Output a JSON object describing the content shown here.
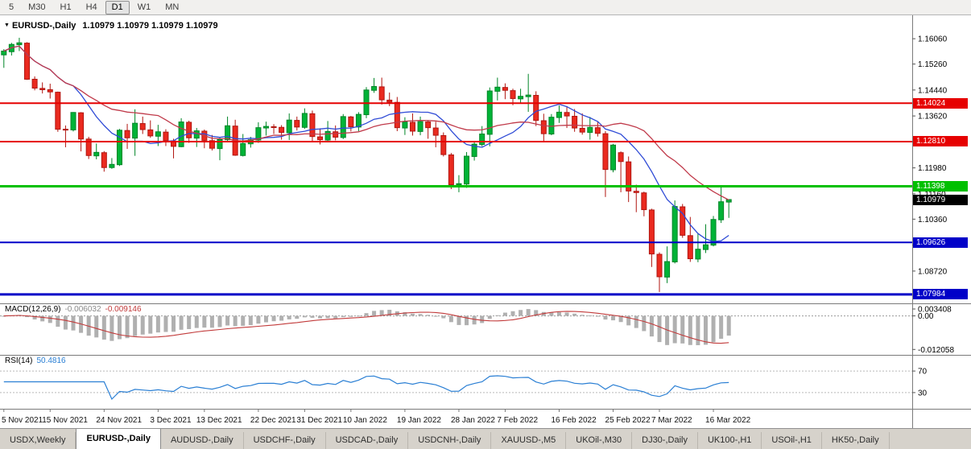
{
  "toolbar": {
    "timeframes": [
      {
        "label": "5",
        "active": false
      },
      {
        "label": "M30",
        "active": false
      },
      {
        "label": "H1",
        "active": false
      },
      {
        "label": "H4",
        "active": false
      },
      {
        "label": "D1",
        "active": true
      },
      {
        "label": "W1",
        "active": false
      },
      {
        "label": "MN",
        "active": false
      }
    ]
  },
  "chart_header": {
    "symbol": "EURUSD-,Daily",
    "ohlc": "1.10979 1.10979 1.10979 1.10979"
  },
  "macd_panel": {
    "name": "MACD(12,26,9)",
    "main_value": "-0.006032",
    "signal_value": "-0.009146",
    "range": [
      -0.014,
      0.0045
    ],
    "ticks": [
      {
        "v": 0.003408,
        "label": "0.003408"
      },
      {
        "v": 0,
        "label": "0.00"
      },
      {
        "v": -0.012058,
        "label": "-0.012058"
      }
    ]
  },
  "rsi_panel": {
    "name": "RSI(14)",
    "value": "50.4816",
    "range": [
      0,
      100
    ],
    "levels": [
      {
        "v": 70,
        "label": "70"
      },
      {
        "v": 30,
        "label": "30"
      }
    ]
  },
  "tabs": {
    "items": [
      "USDX,Weekly",
      "EURUSD-,Daily",
      "AUDUSD-,Daily",
      "USDCHF-,Daily",
      "USDCAD-,Daily",
      "USDCNH-,Daily",
      "XAUUSD-,M5",
      "UKOil-,M30",
      "DJ30-,Daily",
      "UK100-,H1",
      "USOil-,H1",
      "HK50-,Daily"
    ],
    "active_index": 1
  },
  "chart_data": {
    "type": "candlestick",
    "symbol": "EURUSD",
    "timeframe": "Daily",
    "ylim": [
      1.077,
      1.168
    ],
    "price_ticks": [
      {
        "v": 1.1606,
        "label": "1.16060"
      },
      {
        "v": 1.1526,
        "label": "1.15260"
      },
      {
        "v": 1.1444,
        "label": "1.14440"
      },
      {
        "v": 1.1362,
        "label": "1.13620"
      },
      {
        "v": 1.1281,
        "label": "1.12810"
      },
      {
        "v": 1.1198,
        "label": "1.11980"
      },
      {
        "v": 1.1116,
        "label": "1.11160"
      },
      {
        "v": 1.1036,
        "label": "1.10360"
      },
      {
        "v": 1.0954,
        "label": "1.09540"
      },
      {
        "v": 1.0872,
        "label": "1.08720"
      }
    ],
    "hlines": [
      {
        "v": 1.14024,
        "label": "1.14024",
        "color": "#e60000",
        "width": 2
      },
      {
        "v": 1.1281,
        "label": "1.12810",
        "color": "#e60000",
        "width": 2
      },
      {
        "v": 1.11398,
        "label": "1.11398",
        "color": "#00c000",
        "width": 3
      },
      {
        "v": 1.09626,
        "label": "1.09626",
        "color": "#0000c8",
        "width": 2
      },
      {
        "v": 1.07984,
        "label": "1.07984",
        "color": "#0000c8",
        "width": 3
      }
    ],
    "current_price": {
      "v": 1.10979,
      "label": "1.10979",
      "color": "#000000"
    },
    "x_labels": [
      {
        "i": 0,
        "label": "5 Nov 2021"
      },
      {
        "i": 6,
        "label": "15 Nov 2021"
      },
      {
        "i": 13,
        "label": "24 Nov 2021"
      },
      {
        "i": 20,
        "label": "3 Dec 2021"
      },
      {
        "i": 26,
        "label": "13 Dec 2021"
      },
      {
        "i": 33,
        "label": "22 Dec 2021"
      },
      {
        "i": 39,
        "label": "31 Dec 2021"
      },
      {
        "i": 45,
        "label": "10 Jan 2022"
      },
      {
        "i": 52,
        "label": "19 Jan 2022"
      },
      {
        "i": 59,
        "label": "28 Jan 2022"
      },
      {
        "i": 65,
        "label": "7 Feb 2022"
      },
      {
        "i": 72,
        "label": "16 Feb 2022"
      },
      {
        "i": 79,
        "label": "25 Feb 2022"
      },
      {
        "i": 85,
        "label": "7 Mar 2022"
      },
      {
        "i": 92,
        "label": "16 Mar 2022"
      }
    ],
    "overlays": {
      "ma_fast": {
        "period": 10,
        "color": "#2f4bd6"
      },
      "ma_slow": {
        "period": 21,
        "color": "#c03a4a"
      }
    },
    "colors": {
      "up": "#00b337",
      "up_stroke": "#008527",
      "down": "#ea2a1f",
      "down_stroke": "#b01510",
      "macd_hist": "#b0b0b0",
      "macd_signal": "#c23b3b",
      "rsi_line": "#2a7fd4"
    },
    "candles": [
      [
        1.1555,
        1.1573,
        1.1514,
        1.1567
      ],
      [
        1.1565,
        1.1593,
        1.1553,
        1.1588
      ],
      [
        1.1587,
        1.1609,
        1.1567,
        1.1593
      ],
      [
        1.1592,
        1.1595,
        1.1476,
        1.1478
      ],
      [
        1.1478,
        1.1487,
        1.1443,
        1.145
      ],
      [
        1.1449,
        1.1468,
        1.1433,
        1.1445
      ],
      [
        1.1445,
        1.1464,
        1.1417,
        1.1438
      ],
      [
        1.1437,
        1.1439,
        1.1312,
        1.132
      ],
      [
        1.132,
        1.1332,
        1.1263,
        1.1319
      ],
      [
        1.1318,
        1.1374,
        1.1313,
        1.1373
      ],
      [
        1.1372,
        1.1374,
        1.125,
        1.1289
      ],
      [
        1.1289,
        1.1296,
        1.1226,
        1.1237
      ],
      [
        1.1236,
        1.1275,
        1.1225,
        1.1247
      ],
      [
        1.1246,
        1.1251,
        1.1186,
        1.1199
      ],
      [
        1.1199,
        1.1229,
        1.1195,
        1.1209
      ],
      [
        1.1208,
        1.1321,
        1.1204,
        1.1317
      ],
      [
        1.1316,
        1.1337,
        1.1258,
        1.1293
      ],
      [
        1.1292,
        1.1383,
        1.1236,
        1.1339
      ],
      [
        1.1338,
        1.136,
        1.1305,
        1.1319
      ],
      [
        1.1318,
        1.1348,
        1.1293,
        1.1299
      ],
      [
        1.1298,
        1.1334,
        1.1267,
        1.1312
      ],
      [
        1.1311,
        1.132,
        1.1267,
        1.1284
      ],
      [
        1.1283,
        1.129,
        1.1228,
        1.1266
      ],
      [
        1.1265,
        1.1355,
        1.1263,
        1.1343
      ],
      [
        1.1342,
        1.1347,
        1.1277,
        1.1293
      ],
      [
        1.1292,
        1.1324,
        1.1264,
        1.1315
      ],
      [
        1.1314,
        1.1319,
        1.126,
        1.1285
      ],
      [
        1.1284,
        1.1302,
        1.1253,
        1.126
      ],
      [
        1.1259,
        1.1296,
        1.1222,
        1.1288
      ],
      [
        1.1287,
        1.136,
        1.1282,
        1.1331
      ],
      [
        1.133,
        1.135,
        1.1236,
        1.1238
      ],
      [
        1.1237,
        1.1305,
        1.1234,
        1.1275
      ],
      [
        1.1274,
        1.1296,
        1.1262,
        1.1287
      ],
      [
        1.1286,
        1.1342,
        1.1277,
        1.1325
      ],
      [
        1.1324,
        1.1344,
        1.13,
        1.1329
      ],
      [
        1.1328,
        1.1336,
        1.1305,
        1.1327
      ],
      [
        1.1326,
        1.1333,
        1.1287,
        1.131
      ],
      [
        1.1309,
        1.137,
        1.1286,
        1.1349
      ],
      [
        1.1348,
        1.136,
        1.1316,
        1.1327
      ],
      [
        1.1326,
        1.1386,
        1.1321,
        1.137
      ],
      [
        1.1369,
        1.1379,
        1.1279,
        1.1297
      ],
      [
        1.1296,
        1.1323,
        1.1272,
        1.1287
      ],
      [
        1.1286,
        1.1346,
        1.128,
        1.1313
      ],
      [
        1.1312,
        1.1332,
        1.1285,
        1.1295
      ],
      [
        1.1294,
        1.1368,
        1.1289,
        1.136
      ],
      [
        1.1359,
        1.1362,
        1.1313,
        1.1328
      ],
      [
        1.1327,
        1.1374,
        1.1314,
        1.1367
      ],
      [
        1.1366,
        1.1453,
        1.1355,
        1.1444
      ],
      [
        1.1443,
        1.1482,
        1.1435,
        1.1455
      ],
      [
        1.1454,
        1.1483,
        1.1398,
        1.1413
      ],
      [
        1.1412,
        1.1436,
        1.1393,
        1.1406
      ],
      [
        1.1405,
        1.1422,
        1.1314,
        1.1325
      ],
      [
        1.1324,
        1.1358,
        1.1302,
        1.1343
      ],
      [
        1.1342,
        1.137,
        1.13,
        1.1314
      ],
      [
        1.1313,
        1.136,
        1.1301,
        1.1344
      ],
      [
        1.1343,
        1.1349,
        1.129,
        1.1325
      ],
      [
        1.1324,
        1.1344,
        1.1263,
        1.1301
      ],
      [
        1.13,
        1.131,
        1.1234,
        1.124
      ],
      [
        1.1239,
        1.1245,
        1.1131,
        1.1145
      ],
      [
        1.1144,
        1.1175,
        1.1121,
        1.1148
      ],
      [
        1.1147,
        1.1248,
        1.1135,
        1.1235
      ],
      [
        1.1234,
        1.1279,
        1.1221,
        1.1273
      ],
      [
        1.1272,
        1.133,
        1.1266,
        1.1305
      ],
      [
        1.1304,
        1.1452,
        1.1266,
        1.1441
      ],
      [
        1.144,
        1.1483,
        1.1411,
        1.1453
      ],
      [
        1.1452,
        1.1465,
        1.1415,
        1.1443
      ],
      [
        1.1442,
        1.1448,
        1.1396,
        1.1417
      ],
      [
        1.1416,
        1.1448,
        1.1402,
        1.1424
      ],
      [
        1.1423,
        1.1495,
        1.1375,
        1.1428
      ],
      [
        1.1427,
        1.144,
        1.133,
        1.1348
      ],
      [
        1.1347,
        1.1369,
        1.128,
        1.1306
      ],
      [
        1.1305,
        1.1368,
        1.1301,
        1.1358
      ],
      [
        1.1357,
        1.1395,
        1.134,
        1.1374
      ],
      [
        1.1373,
        1.1393,
        1.1324,
        1.1362
      ],
      [
        1.1361,
        1.1384,
        1.1312,
        1.1324
      ],
      [
        1.1323,
        1.137,
        1.1303,
        1.1311
      ],
      [
        1.131,
        1.1359,
        1.1287,
        1.1326
      ],
      [
        1.1325,
        1.1344,
        1.1297,
        1.1307
      ],
      [
        1.1306,
        1.1314,
        1.1106,
        1.1193
      ],
      [
        1.1192,
        1.1274,
        1.1184,
        1.127
      ],
      [
        1.1246,
        1.125,
        1.1121,
        1.1218
      ],
      [
        1.1217,
        1.1234,
        1.109,
        1.1125
      ],
      [
        1.1124,
        1.1145,
        1.1058,
        1.112
      ],
      [
        1.1119,
        1.1123,
        1.1045,
        1.1066
      ],
      [
        1.1065,
        1.1069,
        1.0885,
        1.0926
      ],
      [
        1.0925,
        1.0931,
        1.0806,
        1.0854
      ],
      [
        1.0853,
        1.095,
        1.0834,
        1.0902
      ],
      [
        1.0901,
        1.1095,
        1.0896,
        1.1076
      ],
      [
        1.1075,
        1.1084,
        1.0977,
        1.0985
      ],
      [
        1.0984,
        1.1043,
        1.0901,
        1.0911
      ],
      [
        1.091,
        1.0992,
        1.09,
        1.0941
      ],
      [
        1.094,
        1.102,
        1.0929,
        1.0955
      ],
      [
        1.0954,
        1.1046,
        1.095,
        1.1035
      ],
      [
        1.1034,
        1.1137,
        1.1024,
        1.1091
      ],
      [
        1.109,
        1.1098,
        1.104,
        1.10979
      ]
    ]
  }
}
